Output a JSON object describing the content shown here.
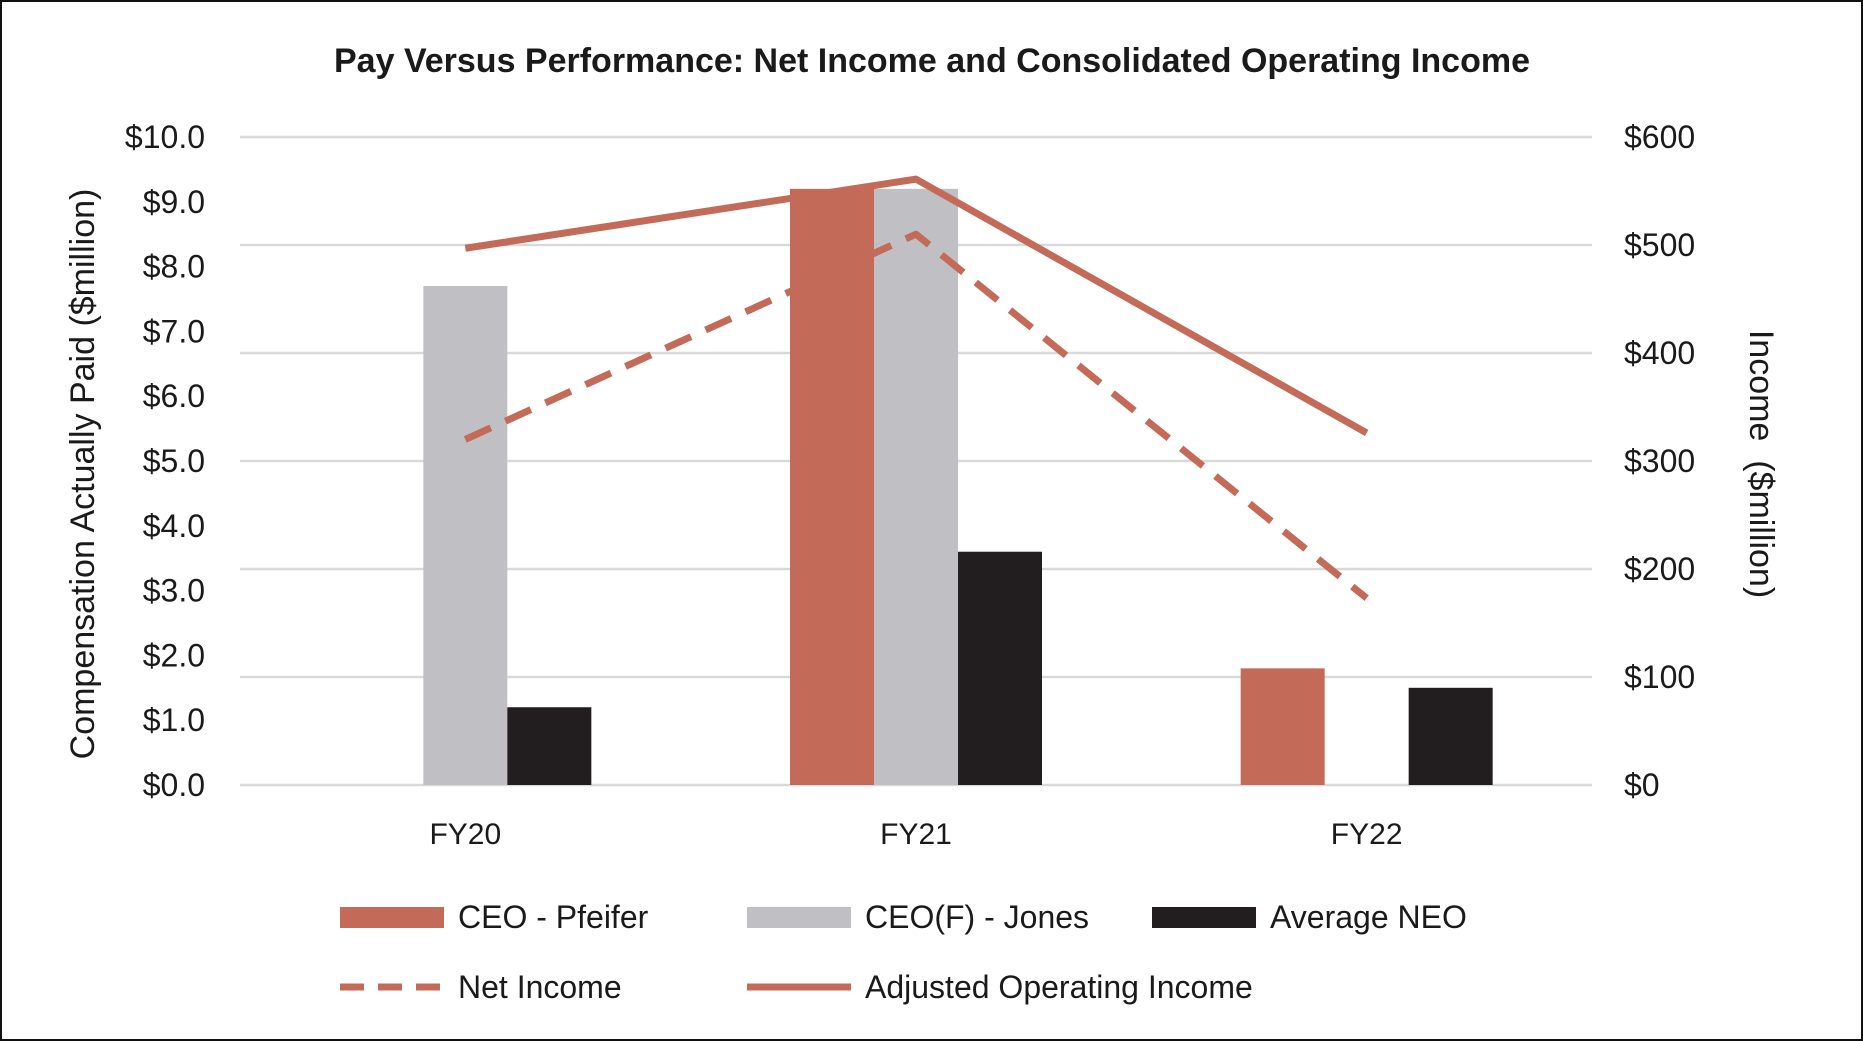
{
  "chart_data": {
    "type": "bar",
    "title": "Pay Versus Performance: Net Income and Consolidated Operating Income",
    "categories": [
      "FY20",
      "FY21",
      "FY22"
    ],
    "ylabel": "Compensation Actually Paid ($million)",
    "ylabel_right": "Income  ($million)",
    "ylim": [
      0,
      10
    ],
    "ylim_right": [
      0,
      600
    ],
    "y_ticks": [
      "$0.0",
      "$1.0",
      "$2.0",
      "$3.0",
      "$4.0",
      "$5.0",
      "$6.0",
      "$7.0",
      "$8.0",
      "$9.0",
      "$10.0"
    ],
    "y_ticks_right": [
      "$0",
      "$100",
      "$200",
      "$300",
      "$400",
      "$500",
      "$600"
    ],
    "grid": true,
    "legend_position": "bottom",
    "series": [
      {
        "name": "CEO - Pfeifer",
        "kind": "bar",
        "axis": "left",
        "color": "#C36B58",
        "values": [
          null,
          9.2,
          1.8
        ]
      },
      {
        "name": "CEO(F) - Jones",
        "kind": "bar",
        "axis": "left",
        "color": "#C0C0C4",
        "values": [
          7.7,
          9.2,
          null
        ]
      },
      {
        "name": "Average NEO",
        "kind": "bar",
        "axis": "left",
        "color": "#221E1F",
        "values": [
          1.2,
          3.6,
          1.5
        ]
      },
      {
        "name": "Net Income",
        "kind": "line",
        "style": "dashed",
        "axis": "right",
        "color": "#C36B58",
        "values": [
          320,
          510,
          173
        ]
      },
      {
        "name": "Adjusted Operating Income",
        "kind": "line",
        "style": "solid",
        "axis": "right",
        "color": "#C36B58",
        "values": [
          497,
          561,
          326
        ]
      }
    ]
  }
}
